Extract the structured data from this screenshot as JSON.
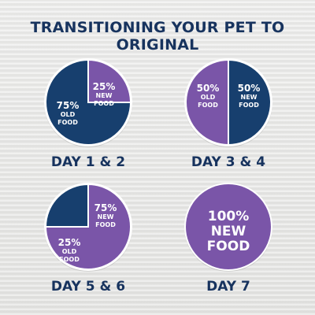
{
  "title": "TRANSITIONING YOUR PET TO ORIGINAL",
  "colors": {
    "old": "#173f6e",
    "new": "#7a55a8",
    "text": "#17335e",
    "ring": "#ffffff"
  },
  "chart_data": [
    {
      "type": "pie",
      "label": "DAY 1 & 2",
      "slices": [
        {
          "pct": "25%",
          "text": "NEW FOOD",
          "value": 25,
          "kind": "new"
        },
        {
          "pct": "75%",
          "text": "OLD FOOD",
          "value": 75,
          "kind": "old"
        }
      ]
    },
    {
      "type": "pie",
      "label": "DAY 3 & 4",
      "slices": [
        {
          "pct": "50%",
          "text": "OLD FOOD",
          "value": 50,
          "kind": "old"
        },
        {
          "pct": "50%",
          "text": "NEW FOOD",
          "value": 50,
          "kind": "new"
        }
      ]
    },
    {
      "type": "pie",
      "label": "DAY 5 & 6",
      "slices": [
        {
          "pct": "75%",
          "text": "NEW FOOD",
          "value": 75,
          "kind": "new"
        },
        {
          "pct": "25%",
          "text": "OLD FOOD",
          "value": 25,
          "kind": "old"
        }
      ]
    },
    {
      "type": "pie",
      "label": "DAY 7",
      "slices": [
        {
          "pct": "100%",
          "text": "NEW FOOD",
          "value": 100,
          "kind": "new"
        }
      ]
    }
  ]
}
